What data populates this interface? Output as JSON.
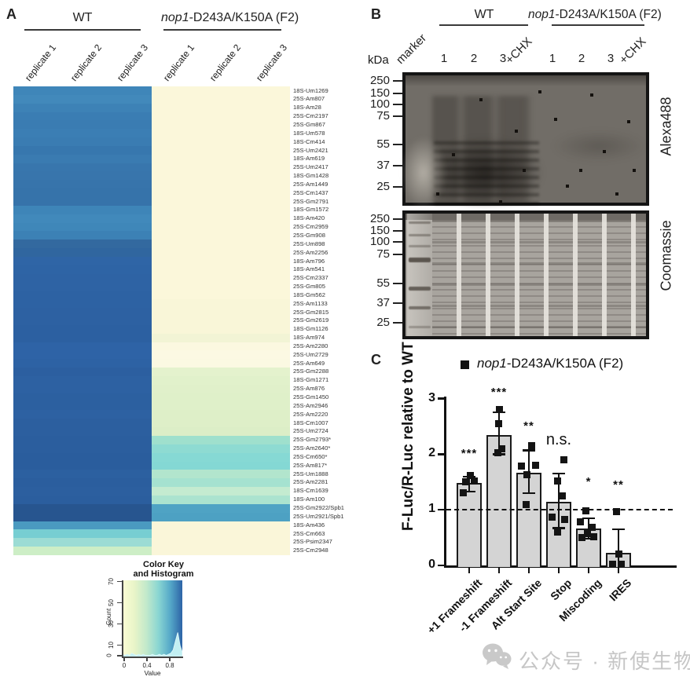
{
  "panelA": {
    "label": "A",
    "group1": "WT",
    "group2_italic": "nop1",
    "group2_rest": "-D243A/K150A (F2)",
    "col_labels": [
      "replicate 1",
      "replicate 2",
      "replicate 3",
      "replicate 1",
      "replicate 2",
      "replicate 3"
    ],
    "heatmap_rows": [
      {
        "label": "18S-Um1269",
        "wt": "#3f86b9",
        "mut": "#fbf7da"
      },
      {
        "label": "25S-Am807",
        "wt": "#4289bb",
        "mut": "#fbf7da"
      },
      {
        "label": "18S-Am28",
        "wt": "#3d82b6",
        "mut": "#fbf7da"
      },
      {
        "label": "25S-Cm2197",
        "wt": "#3a7db3",
        "mut": "#fbf7da"
      },
      {
        "label": "25S-Gm867",
        "wt": "#3a7cb2",
        "mut": "#fbf7da"
      },
      {
        "label": "18S-Um578",
        "wt": "#3b7eb4",
        "mut": "#fbf7da"
      },
      {
        "label": "18S-Cm414",
        "wt": "#3a7cb2",
        "mut": "#fbf7da"
      },
      {
        "label": "25S-Um2421",
        "wt": "#3777ae",
        "mut": "#fbf7da"
      },
      {
        "label": "18S-Am619",
        "wt": "#3a7bb1",
        "mut": "#fbf7da"
      },
      {
        "label": "25S-Um2417",
        "wt": "#3876ad",
        "mut": "#fbf7da"
      },
      {
        "label": "18S-Gm1428",
        "wt": "#3875ac",
        "mut": "#fbf7da"
      },
      {
        "label": "25S-Am1449",
        "wt": "#3774ab",
        "mut": "#fbf7da"
      },
      {
        "label": "25S-Cm1437",
        "wt": "#3673aa",
        "mut": "#fbf7da"
      },
      {
        "label": "25S-Gm2791",
        "wt": "#3673aa",
        "mut": "#fbf7da"
      },
      {
        "label": "18S-Gm1572",
        "wt": "#3e85b8",
        "mut": "#fbf7da"
      },
      {
        "label": "18S-Am420",
        "wt": "#4189bb",
        "mut": "#fbf7da"
      },
      {
        "label": "25S-Cm2959",
        "wt": "#3f87b9",
        "mut": "#fbf7da"
      },
      {
        "label": "25S-Gm908",
        "wt": "#3c81b5",
        "mut": "#fbf7da"
      },
      {
        "label": "25S-Um898",
        "wt": "#33699f",
        "mut": "#fbf7da"
      },
      {
        "label": "25S-Am2256",
        "wt": "#30669f",
        "mut": "#fbf7da"
      },
      {
        "label": "18S-Am796",
        "wt": "#2f65a6",
        "mut": "#fbf7da"
      },
      {
        "label": "18S-Am541",
        "wt": "#2e64a5",
        "mut": "#fbf7da"
      },
      {
        "label": "25S-Cm2337",
        "wt": "#2e63a4",
        "mut": "#fbf7da"
      },
      {
        "label": "25S-Gm805",
        "wt": "#2e63a4",
        "mut": "#fbf7da"
      },
      {
        "label": "18S-Gm562",
        "wt": "#2d62a3",
        "mut": "#fbf7da"
      },
      {
        "label": "25S-Am1133",
        "wt": "#2d62a3",
        "mut": "#f9f6d8"
      },
      {
        "label": "25S-Gm2815",
        "wt": "#2d61a2",
        "mut": "#f9f6d8"
      },
      {
        "label": "25S-Gm2619",
        "wt": "#2d61a2",
        "mut": "#f9f6d8"
      },
      {
        "label": "18S-Gm1126",
        "wt": "#2c60a1",
        "mut": "#f9f6d8"
      },
      {
        "label": "18S-Am974",
        "wt": "#2c60a1",
        "mut": "#f2f4d5"
      },
      {
        "label": "25S-Am2280",
        "wt": "#2e63a6",
        "mut": "#fbf8e0"
      },
      {
        "label": "25S-Um2729",
        "wt": "#2e63a6",
        "mut": "#fcf9e3"
      },
      {
        "label": "25S-Am649",
        "wt": "#2d62a4",
        "mut": "#fbf9e2"
      },
      {
        "label": "25S-Gm2288",
        "wt": "#2c5fa0",
        "mut": "#e4f2cd"
      },
      {
        "label": "18S-Gm1271",
        "wt": "#2d61a2",
        "mut": "#e1f1cb"
      },
      {
        "label": "25S-Am876",
        "wt": "#2d61a2",
        "mut": "#e0f0ca"
      },
      {
        "label": "25S-Gm1450",
        "wt": "#2c60a0",
        "mut": "#dff0c9"
      },
      {
        "label": "25S-Am2946",
        "wt": "#2c60a0",
        "mut": "#dff0c9"
      },
      {
        "label": "25S-Am2220",
        "wt": "#2d61a2",
        "mut": "#deefc8"
      },
      {
        "label": "18S-Cm1007",
        "wt": "#2c5f9f",
        "mut": "#deefc8"
      },
      {
        "label": "25S-Um2724",
        "wt": "#2c5f9f",
        "mut": "#dceec7"
      },
      {
        "label": "25S-Gm2793*",
        "wt": "#2b5e9e",
        "mut": "#9fe0cd"
      },
      {
        "label": "25S-Am2640*",
        "wt": "#2b5e9e",
        "mut": "#8edbd2"
      },
      {
        "label": "25S-Cm650*",
        "wt": "#2a5d9d",
        "mut": "#86d9d4"
      },
      {
        "label": "25S-Am817*",
        "wt": "#2a5d9d",
        "mut": "#84d8d4"
      },
      {
        "label": "25S-Um1888",
        "wt": "#2c60a0",
        "mut": "#b2e5cd"
      },
      {
        "label": "25S-Am2281",
        "wt": "#2b5e9e",
        "mut": "#a5e2d0"
      },
      {
        "label": "18S-Cm1639",
        "wt": "#2c5f9f",
        "mut": "#c4ebd0"
      },
      {
        "label": "18S-Am100",
        "wt": "#2b5e9e",
        "mut": "#abe3cf"
      },
      {
        "label": "25S-Gm2922/Spb1",
        "wt": "#27558f",
        "mut": "#4fa3c4"
      },
      {
        "label": "25S-Um2921/Spb1",
        "wt": "#27558f",
        "mut": "#4da1c3"
      },
      {
        "label": "18S-Am436",
        "wt": "#4a9ac0",
        "mut": "#faf6d9"
      },
      {
        "label": "25S-Cm663",
        "wt": "#77ced2",
        "mut": "#faf6d9"
      },
      {
        "label": "25S-Psim2347",
        "wt": "#9cdcd4",
        "mut": "#faf6d9"
      },
      {
        "label": "25S-Cm2948",
        "wt": "#cdeec6",
        "mut": "#faf6d9"
      }
    ],
    "color_key": {
      "title_line1": "Color Key",
      "title_line2": "and Histogram",
      "y_label": "Count",
      "y_ticks": [
        "0",
        "10",
        "30",
        "50",
        "70"
      ],
      "x_ticks": [
        "0",
        "0.4",
        "0.8"
      ],
      "x_label": "Value",
      "gradient": [
        "#fcfdd4",
        "#e8f4c8",
        "#c2e9cb",
        "#8ad6d2",
        "#55a8c8",
        "#2d63a6"
      ],
      "hist_color": "#c2eff2",
      "histogram_counts": [
        2,
        1,
        2,
        1,
        3,
        2,
        1,
        2,
        1,
        2,
        1,
        1,
        1,
        2,
        1,
        1,
        2,
        1,
        2,
        1,
        2,
        3,
        6,
        14,
        22,
        10,
        4
      ]
    }
  },
  "panelB": {
    "label": "B",
    "group1": "WT",
    "group2_italic": "nop1",
    "group2_rest": "-D243A/K150A (F2)",
    "kda_label": "kDa",
    "lane_labels": [
      "marker",
      "1",
      "2",
      "3",
      "+CHX",
      "1",
      "2",
      "3",
      "+CHX"
    ],
    "marker_ticks": [
      "250",
      "150",
      "100",
      "75",
      "55",
      "37",
      "25"
    ],
    "gel1_name": "Alexa488",
    "gel2_name": "Coomassie"
  },
  "panelC": {
    "label": "C",
    "legend_italic": "nop1",
    "legend_rest": "-D243A/K150A (F2)",
    "chart_data": {
      "type": "bar",
      "categories": [
        "+1 Frameshift",
        "-1 Frameshift",
        "Alt Start Site",
        "Stop",
        "Miscoding",
        "IRES"
      ],
      "values": [
        1.48,
        2.35,
        1.67,
        1.15,
        0.67,
        0.22
      ],
      "error_low": [
        1.33,
        2.0,
        1.3,
        0.67,
        0.48,
        0.0
      ],
      "error_high": [
        1.6,
        2.75,
        2.07,
        1.65,
        0.85,
        0.65
      ],
      "points": [
        [
          [
            -8,
            1.3
          ],
          [
            -5,
            1.5
          ],
          [
            6,
            1.52
          ],
          [
            1,
            1.62
          ]
        ],
        [
          [
            -2,
            2.02
          ],
          [
            3,
            2.1
          ],
          [
            -1,
            2.55
          ],
          [
            0,
            2.8
          ]
        ],
        [
          [
            -10,
            1.78
          ],
          [
            8,
            1.8
          ],
          [
            -3,
            1.63
          ],
          [
            3,
            2.15
          ],
          [
            -4,
            1.1
          ]
        ],
        [
          [
            6,
            1.9
          ],
          [
            -2,
            1.52
          ],
          [
            4,
            1.25
          ],
          [
            -9,
            0.87
          ],
          [
            7,
            0.83
          ],
          [
            -2,
            0.6
          ]
        ],
        [
          [
            -4,
            0.98
          ],
          [
            -11,
            0.78
          ],
          [
            4,
            0.68
          ],
          [
            -2,
            0.57
          ],
          [
            -9,
            0.5
          ],
          [
            6,
            0.51
          ]
        ],
        [
          [
            -3,
            0.97
          ],
          [
            0,
            0.2
          ],
          [
            -8,
            0.02
          ],
          [
            3,
            0.02
          ]
        ]
      ],
      "significance": [
        {
          "text": "***",
          "y": 2.02
        },
        {
          "text": "***",
          "y": 3.12
        },
        {
          "text": "**",
          "y": 2.51
        },
        {
          "text": "n.s.",
          "y": 2.3
        },
        {
          "text": "*",
          "y": 1.51
        },
        {
          "text": "**",
          "y": 1.45
        }
      ],
      "ylabel": "F-Luc/R-Luc relative to WT",
      "y_ticks": [
        0,
        1,
        2,
        3
      ],
      "ylim": [
        0,
        3
      ],
      "ref_line": 1,
      "bar_fill": "#d4d4d4",
      "bar_edge": "#1b1b1b"
    }
  },
  "watermark": {
    "text": "公众号 · 新使生物"
  }
}
